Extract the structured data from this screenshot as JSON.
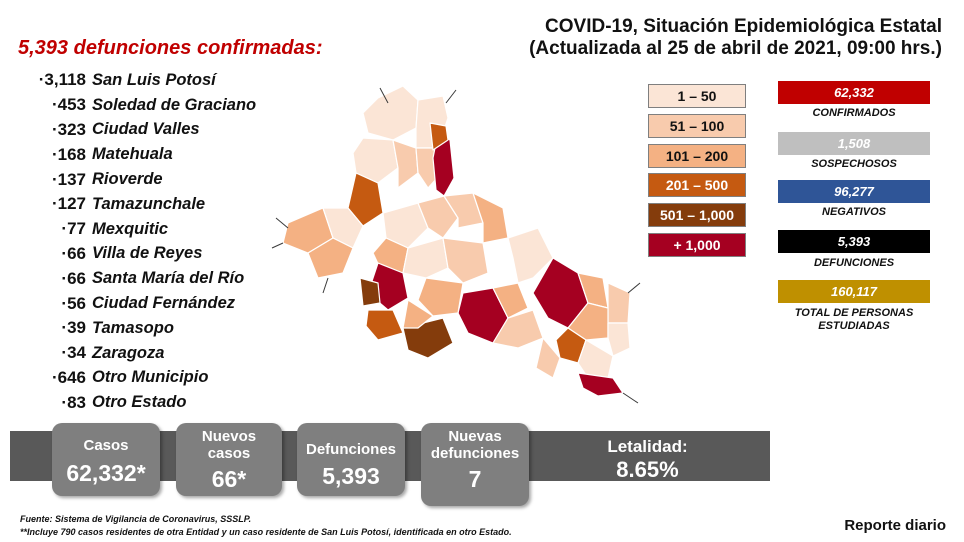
{
  "header": {
    "title_line1": "COVID-19, Situación Epidemiológica Estatal",
    "title_line2": "(Actualizada al 25 de abril de 2021, 09:00 hrs.)"
  },
  "deaths_headline": "5,393 defunciones confirmadas:",
  "municipalities": [
    {
      "count": "3,118",
      "name": "San Luis Potosí"
    },
    {
      "count": "453",
      "name": "Soledad de Graciano"
    },
    {
      "count": "323",
      "name": "Ciudad Valles"
    },
    {
      "count": "168",
      "name": "Matehuala"
    },
    {
      "count": "137",
      "name": "Rioverde"
    },
    {
      "count": "127",
      "name": "Tamazunchale"
    },
    {
      "count": "77",
      "name": "Mexquitic"
    },
    {
      "count": "66",
      "name": "Villa de Reyes"
    },
    {
      "count": "66",
      "name": "Santa María del Río"
    },
    {
      "count": "56",
      "name": "Ciudad Fernández"
    },
    {
      "count": "39",
      "name": "Tamasopo"
    },
    {
      "count": "34",
      "name": "Zaragoza"
    },
    {
      "count": "646",
      "name": "Otro Municipio"
    },
    {
      "count": "83",
      "name": "Otro Estado"
    }
  ],
  "legend": [
    {
      "label": "1 – 50",
      "color": "#fbe5d6",
      "text_color": "#111111"
    },
    {
      "label": "51 – 100",
      "color": "#f8cbad",
      "text_color": "#111111"
    },
    {
      "label": "101 – 200",
      "color": "#f4b183",
      "text_color": "#111111"
    },
    {
      "label": "201 – 500",
      "color": "#c55a11",
      "text_color": "#ffffff"
    },
    {
      "label": "501 – 1,000",
      "color": "#843c0c",
      "text_color": "#ffffff"
    },
    {
      "label": "+ 1,000",
      "color": "#a50021",
      "text_color": "#ffffff"
    }
  ],
  "stats": [
    {
      "value": "62,332",
      "label": "CONFIRMADOS",
      "color": "#c00000",
      "text_color": "#ffffff"
    },
    {
      "value": "1,508",
      "label": "SOSPECHOSOS",
      "color": "#bfbfbf",
      "text_color": "#ffffff"
    },
    {
      "value": "96,277",
      "label": "NEGATIVOS",
      "color": "#2f5597",
      "text_color": "#ffffff"
    },
    {
      "value": "5,393",
      "label": "DEFUNCIONES",
      "color": "#000000",
      "text_color": "#ffffff"
    },
    {
      "value": "160,117",
      "label": "TOTAL DE PERSONAS ESTUDIADAS",
      "color": "#bf9000",
      "text_color": "#ffffff"
    }
  ],
  "summary": {
    "casos_label": "Casos",
    "casos_value": "62,332*",
    "nuevos_casos_label": "Nuevos casos",
    "nuevos_casos_value": "66*",
    "defunciones_label": "Defunciones",
    "defunciones_value": "5,393",
    "nuevas_defunciones_label": "Nuevas defunciones",
    "nuevas_defunciones_value": "7",
    "letalidad_label": "Letalidad:",
    "letalidad_value": "8.65%"
  },
  "footer": {
    "source": "Fuente: Sistema de Vigilancia de Coronavirus, SSSLP.",
    "note": "**Incluye 790 casos residentes de otra Entidad y un caso residente de San Luis Potosí, identificada en otro Estado.",
    "report": "Reporte diario"
  }
}
